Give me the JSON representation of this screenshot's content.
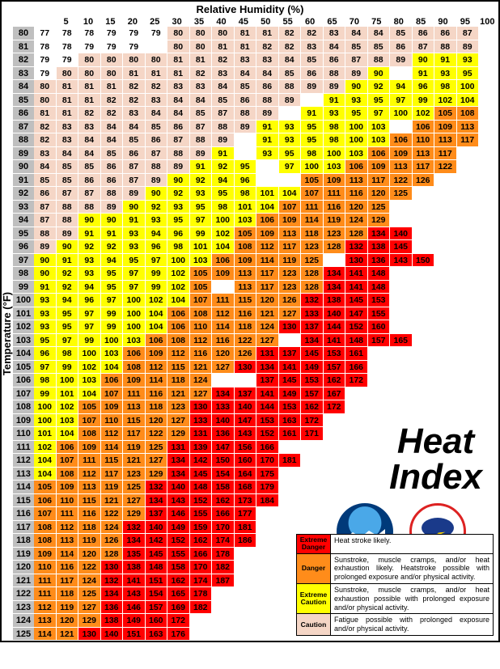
{
  "axes": {
    "x_title": "Relative Humidity (%)",
    "y_title": "Temperature (°F)",
    "humidity": [
      5,
      10,
      15,
      20,
      25,
      30,
      35,
      40,
      45,
      50,
      55,
      60,
      65,
      70,
      75,
      80,
      85,
      90,
      95,
      100
    ],
    "temperature": [
      80,
      81,
      82,
      83,
      84,
      85,
      86,
      87,
      88,
      89,
      90,
      91,
      92,
      93,
      94,
      95,
      96,
      97,
      98,
      99,
      100,
      101,
      102,
      103,
      104,
      105,
      106,
      107,
      108,
      109,
      110,
      111,
      112,
      113,
      114,
      115,
      116,
      117,
      118,
      119,
      120,
      121,
      122,
      123,
      124,
      125
    ]
  },
  "title": "Heat Index",
  "thresholds": {
    "caution_max": 89,
    "extreme_caution_max": 104,
    "danger_max": 129
  },
  "colors": {
    "white": "#ffffff",
    "caution": "#f5d6c6",
    "extreme_caution": "#ffff00",
    "danger": "#ff8c1a",
    "extreme_danger": "#ff0000",
    "row_header_bg": "#bfbfbf",
    "border": "#000000"
  },
  "grid": [
    [
      77,
      78,
      78,
      79,
      79,
      79,
      80,
      80,
      80,
      81,
      81,
      82,
      82,
      83,
      84,
      84,
      85,
      86,
      86,
      87
    ],
    [
      78,
      78,
      79,
      79,
      79,
      null,
      80,
      80,
      81,
      81,
      82,
      82,
      83,
      84,
      85,
      85,
      86,
      87,
      88,
      89
    ],
    [
      79,
      79,
      80,
      80,
      80,
      80,
      81,
      81,
      82,
      83,
      83,
      84,
      85,
      86,
      87,
      88,
      89,
      90,
      91,
      93
    ],
    [
      79,
      80,
      80,
      80,
      81,
      81,
      81,
      82,
      83,
      84,
      84,
      85,
      86,
      88,
      89,
      90,
      null,
      91,
      93,
      95
    ],
    [
      80,
      81,
      81,
      81,
      82,
      82,
      83,
      83,
      84,
      85,
      86,
      88,
      89,
      89,
      90,
      92,
      94,
      96,
      98,
      100
    ],
    [
      80,
      81,
      81,
      82,
      82,
      83,
      84,
      84,
      85,
      86,
      88,
      89,
      null,
      91,
      93,
      95,
      97,
      99,
      102,
      104
    ],
    [
      81,
      81,
      82,
      82,
      83,
      84,
      84,
      85,
      87,
      88,
      89,
      null,
      91,
      93,
      95,
      97,
      100,
      102,
      105,
      108
    ],
    [
      82,
      83,
      83,
      84,
      84,
      85,
      86,
      87,
      88,
      89,
      91,
      93,
      95,
      98,
      100,
      103,
      null,
      106,
      109,
      113
    ],
    [
      82,
      83,
      84,
      84,
      85,
      86,
      87,
      88,
      89,
      null,
      91,
      93,
      95,
      98,
      100,
      103,
      106,
      110,
      113,
      117
    ],
    [
      83,
      84,
      84,
      85,
      86,
      87,
      88,
      89,
      91,
      null,
      93,
      95,
      98,
      100,
      103,
      106,
      109,
      113,
      117,
      null
    ],
    [
      84,
      85,
      85,
      86,
      87,
      88,
      89,
      91,
      92,
      95,
      null,
      97,
      100,
      103,
      106,
      109,
      113,
      117,
      122,
      null
    ],
    [
      85,
      85,
      86,
      86,
      87,
      89,
      90,
      92,
      94,
      96,
      null,
      null,
      105,
      109,
      113,
      117,
      122,
      126,
      null,
      null
    ],
    [
      86,
      87,
      87,
      88,
      89,
      90,
      92,
      93,
      95,
      98,
      101,
      104,
      107,
      111,
      116,
      120,
      125,
      null,
      null,
      null
    ],
    [
      87,
      88,
      88,
      89,
      90,
      92,
      93,
      95,
      98,
      101,
      104,
      107,
      111,
      116,
      120,
      125,
      null,
      null,
      null,
      null
    ],
    [
      87,
      88,
      90,
      90,
      91,
      93,
      95,
      97,
      100,
      103,
      106,
      109,
      114,
      119,
      124,
      129,
      null,
      null,
      null,
      null
    ],
    [
      88,
      89,
      91,
      91,
      93,
      94,
      96,
      99,
      102,
      105,
      109,
      113,
      118,
      123,
      128,
      134,
      140,
      null,
      null,
      null
    ],
    [
      89,
      90,
      92,
      92,
      93,
      96,
      98,
      101,
      104,
      108,
      112,
      117,
      123,
      128,
      132,
      138,
      145,
      null,
      null,
      null
    ],
    [
      90,
      91,
      93,
      94,
      95,
      97,
      100,
      103,
      106,
      109,
      114,
      119,
      125,
      null,
      130,
      136,
      143,
      150,
      null,
      null
    ],
    [
      90,
      92,
      93,
      95,
      97,
      99,
      102,
      105,
      109,
      113,
      117,
      123,
      128,
      134,
      141,
      148,
      null,
      null,
      null,
      null
    ],
    [
      91,
      92,
      94,
      95,
      97,
      99,
      102,
      105,
      null,
      113,
      117,
      123,
      128,
      134,
      141,
      148,
      null,
      null,
      null,
      null
    ],
    [
      93,
      94,
      96,
      97,
      100,
      102,
      104,
      107,
      111,
      115,
      120,
      126,
      132,
      138,
      145,
      153,
      null,
      null,
      null,
      null
    ],
    [
      93,
      95,
      97,
      99,
      100,
      104,
      106,
      108,
      112,
      116,
      121,
      127,
      133,
      140,
      147,
      155,
      null,
      null,
      null,
      null
    ],
    [
      93,
      95,
      97,
      99,
      100,
      104,
      106,
      110,
      114,
      118,
      124,
      130,
      137,
      144,
      152,
      160,
      null,
      null,
      null,
      null
    ],
    [
      95,
      97,
      99,
      100,
      103,
      106,
      108,
      112,
      116,
      122,
      127,
      null,
      134,
      141,
      148,
      157,
      165,
      null,
      null,
      null
    ],
    [
      96,
      98,
      100,
      103,
      106,
      109,
      112,
      116,
      120,
      126,
      131,
      137,
      145,
      153,
      161,
      null,
      null,
      null,
      null,
      null
    ],
    [
      97,
      99,
      102,
      104,
      108,
      112,
      115,
      121,
      127,
      130,
      134,
      141,
      149,
      157,
      166,
      null,
      null,
      null,
      null,
      null
    ],
    [
      98,
      100,
      103,
      106,
      109,
      114,
      118,
      124,
      null,
      null,
      137,
      145,
      153,
      162,
      172,
      null,
      null,
      null,
      null,
      null
    ],
    [
      99,
      101,
      104,
      107,
      111,
      116,
      121,
      127,
      134,
      137,
      141,
      149,
      157,
      167,
      null,
      null,
      null,
      null,
      null,
      null
    ],
    [
      100,
      102,
      105,
      109,
      113,
      118,
      123,
      130,
      133,
      140,
      144,
      153,
      162,
      172,
      null,
      null,
      null,
      null,
      null,
      null
    ],
    [
      100,
      103,
      107,
      110,
      115,
      120,
      127,
      133,
      140,
      147,
      153,
      163,
      172,
      null,
      null,
      null,
      null,
      null,
      null,
      null
    ],
    [
      101,
      104,
      108,
      112,
      117,
      122,
      129,
      131,
      136,
      143,
      152,
      161,
      171,
      null,
      null,
      null,
      null,
      null,
      null,
      null
    ],
    [
      102,
      106,
      109,
      114,
      119,
      125,
      131,
      139,
      147,
      156,
      166,
      null,
      null,
      null,
      null,
      null,
      null,
      null,
      null,
      null
    ],
    [
      104,
      107,
      111,
      115,
      121,
      127,
      134,
      142,
      150,
      160,
      170,
      181,
      null,
      null,
      null,
      null,
      null,
      null,
      null,
      null
    ],
    [
      104,
      108,
      112,
      117,
      123,
      129,
      134,
      145,
      154,
      164,
      175,
      null,
      null,
      null,
      null,
      null,
      null,
      null,
      null,
      null
    ],
    [
      105,
      109,
      113,
      119,
      125,
      132,
      140,
      148,
      158,
      168,
      179,
      null,
      null,
      null,
      null,
      null,
      null,
      null,
      null,
      null
    ],
    [
      106,
      110,
      115,
      121,
      127,
      134,
      143,
      152,
      162,
      173,
      184,
      null,
      null,
      null,
      null,
      null,
      null,
      null,
      null,
      null
    ],
    [
      107,
      111,
      116,
      122,
      129,
      137,
      146,
      155,
      166,
      177,
      null,
      null,
      null,
      null,
      null,
      null,
      null,
      null,
      null,
      null
    ],
    [
      108,
      112,
      118,
      124,
      132,
      140,
      149,
      159,
      170,
      181,
      null,
      null,
      null,
      null,
      null,
      null,
      null,
      null,
      null,
      null
    ],
    [
      108,
      113,
      119,
      126,
      134,
      142,
      152,
      162,
      174,
      186,
      null,
      null,
      null,
      null,
      null,
      null,
      null,
      null,
      null,
      null
    ],
    [
      109,
      114,
      120,
      128,
      135,
      145,
      155,
      166,
      178,
      null,
      null,
      null,
      null,
      null,
      null,
      null,
      null,
      null,
      null,
      null
    ],
    [
      110,
      116,
      122,
      130,
      138,
      148,
      158,
      170,
      182,
      null,
      null,
      null,
      null,
      null,
      null,
      null,
      null,
      null,
      null,
      null
    ],
    [
      111,
      117,
      124,
      132,
      141,
      151,
      162,
      174,
      187,
      null,
      null,
      null,
      null,
      null,
      null,
      null,
      null,
      null,
      null,
      null
    ],
    [
      111,
      118,
      125,
      134,
      143,
      154,
      165,
      178,
      null,
      null,
      null,
      null,
      null,
      null,
      null,
      null,
      null,
      null,
      null,
      null
    ],
    [
      112,
      119,
      127,
      136,
      146,
      157,
      169,
      182,
      null,
      null,
      null,
      null,
      null,
      null,
      null,
      null,
      null,
      null,
      null,
      null
    ],
    [
      113,
      120,
      129,
      138,
      149,
      160,
      172,
      null,
      null,
      null,
      null,
      null,
      null,
      null,
      null,
      null,
      null,
      null,
      null,
      null
    ],
    [
      114,
      121,
      130,
      140,
      151,
      163,
      176,
      null,
      null,
      null,
      null,
      null,
      null,
      null,
      null,
      null,
      null,
      null,
      null,
      null
    ]
  ],
  "white_cells": [
    "0,0",
    "0,1",
    "0,2",
    "0,3",
    "0,4",
    "0,5",
    "1,0",
    "1,1",
    "1,2",
    "1,3",
    "1,4",
    "2,0",
    "2,1",
    "3,0"
  ],
  "legend": [
    {
      "label": "Extreme Danger",
      "color": "extreme_danger",
      "text": "Heat stroke likely."
    },
    {
      "label": "Danger",
      "color": "danger",
      "text": "Sunstroke, muscle cramps, and/or heat exhaustion likely. Heatstroke possible with prolonged exposure and/or physical activity."
    },
    {
      "label": "Extreme Caution",
      "color": "extreme_caution",
      "text": "Sunstroke, muscle cramps, and/or heat exhaustion possible with prolonged exposure and/or physical activity."
    },
    {
      "label": "Caution",
      "color": "caution",
      "text": "Fatigue possible with prolonged exposure and/or physical activity."
    }
  ],
  "logos": {
    "noaa": "NOAA",
    "nws": "NATIONAL WEATHER SERVICE"
  }
}
